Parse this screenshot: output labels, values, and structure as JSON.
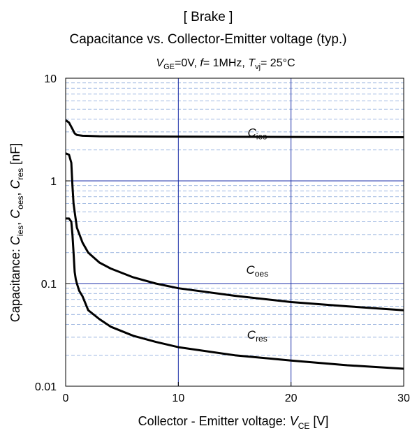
{
  "chart_data": {
    "type": "line",
    "title_top": "[ Brake ]",
    "title": "Capacitance  vs.  Collector-Emitter voltage  (typ.)",
    "conditions": {
      "vge_sym": "V",
      "vge_sub": "GE",
      "vge_val": "=0V,  ",
      "f_sym": "f",
      "f_val": "= 1MHz,  ",
      "tvj_sym": "T",
      "tvj_sub": "vj",
      "tvj_val": "= 25°C"
    },
    "xlabel": {
      "text": "Collector - Emitter voltage:  ",
      "sym": "V",
      "sub": "CE",
      "unit": " [V]"
    },
    "ylabel": {
      "prefix": "Capacitance:  ",
      "s1": "C",
      "s1_sub": "ies",
      "sep1": ",  ",
      "s2": "C",
      "s2_sub": "oes",
      "sep2": ",  ",
      "s3": "C",
      "s3_sub": "res",
      "unit": " [nF]"
    },
    "xlim": [
      0,
      30
    ],
    "ylim": [
      0.01,
      10
    ],
    "yscale": "log",
    "grid": true,
    "xticks": [
      0,
      10,
      20,
      30
    ],
    "xtick_labels": [
      "0",
      "10",
      "20",
      "30"
    ],
    "yticks": [
      0.01,
      0.1,
      1,
      10
    ],
    "ytick_labels": [
      "0.01",
      "0.1",
      "1",
      "10"
    ],
    "series": [
      {
        "name": "Cies",
        "label_sym": "C",
        "label_sub": "ies",
        "label_at": [
          17,
          2.7
        ],
        "points": [
          [
            0,
            3.9
          ],
          [
            0.3,
            3.7
          ],
          [
            0.6,
            3.2
          ],
          [
            0.8,
            2.9
          ],
          [
            1.0,
            2.8
          ],
          [
            1.5,
            2.75
          ],
          [
            3,
            2.72
          ],
          [
            10,
            2.7
          ],
          [
            20,
            2.68
          ],
          [
            30,
            2.66
          ]
        ]
      },
      {
        "name": "Coes",
        "label_sym": "C",
        "label_sub": "oes",
        "label_at": [
          17,
          0.125
        ],
        "points": [
          [
            0,
            1.85
          ],
          [
            0.3,
            1.8
          ],
          [
            0.5,
            1.5
          ],
          [
            0.6,
            0.9
          ],
          [
            0.7,
            0.6
          ],
          [
            0.8,
            0.5
          ],
          [
            1.0,
            0.35
          ],
          [
            1.5,
            0.25
          ],
          [
            2,
            0.2
          ],
          [
            3,
            0.16
          ],
          [
            4,
            0.14
          ],
          [
            6,
            0.115
          ],
          [
            8,
            0.1
          ],
          [
            10,
            0.09
          ],
          [
            15,
            0.076
          ],
          [
            20,
            0.066
          ],
          [
            25,
            0.06
          ],
          [
            30,
            0.055
          ]
        ]
      },
      {
        "name": "Cres",
        "label_sym": "C",
        "label_sub": "res",
        "label_at": [
          17,
          0.029
        ],
        "points": [
          [
            0,
            0.43
          ],
          [
            0.3,
            0.43
          ],
          [
            0.5,
            0.4
          ],
          [
            0.6,
            0.3
          ],
          [
            0.7,
            0.2
          ],
          [
            0.8,
            0.13
          ],
          [
            0.9,
            0.11
          ],
          [
            1.0,
            0.1
          ],
          [
            1.2,
            0.085
          ],
          [
            1.5,
            0.075
          ],
          [
            2,
            0.055
          ],
          [
            3,
            0.045
          ],
          [
            4,
            0.038
          ],
          [
            6,
            0.031
          ],
          [
            8,
            0.027
          ],
          [
            10,
            0.024
          ],
          [
            15,
            0.02
          ],
          [
            20,
            0.0178
          ],
          [
            25,
            0.016
          ],
          [
            30,
            0.0148
          ]
        ]
      }
    ]
  }
}
